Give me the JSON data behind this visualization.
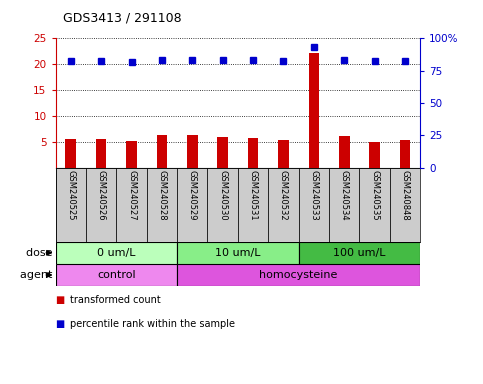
{
  "title": "GDS3413 / 291108",
  "samples": [
    "GSM240525",
    "GSM240526",
    "GSM240527",
    "GSM240528",
    "GSM240529",
    "GSM240530",
    "GSM240531",
    "GSM240532",
    "GSM240533",
    "GSM240534",
    "GSM240535",
    "GSM240848"
  ],
  "transformed_count": [
    5.6,
    5.5,
    5.1,
    6.3,
    6.3,
    5.9,
    5.8,
    5.4,
    22.1,
    6.2,
    5.05,
    5.3
  ],
  "percentile_rank_left": [
    20.7,
    20.7,
    20.5,
    20.9,
    20.9,
    20.8,
    20.8,
    20.7,
    23.3,
    20.9,
    20.6,
    20.7
  ],
  "ylim_left": [
    0,
    25
  ],
  "ylim_right": [
    0,
    100
  ],
  "yticks_left": [
    5,
    10,
    15,
    20,
    25
  ],
  "yticks_right": [
    0,
    25,
    50,
    75,
    100
  ],
  "ytick_labels_right": [
    "0",
    "25",
    "50",
    "75",
    "100%"
  ],
  "dot_color": "#0000cc",
  "bar_color": "#cc0000",
  "grid_color": "#000000",
  "dose_groups": [
    {
      "label": "0 um/L",
      "start": 0,
      "end": 4,
      "color": "#bbffbb"
    },
    {
      "label": "10 um/L",
      "start": 4,
      "end": 8,
      "color": "#88ee88"
    },
    {
      "label": "100 um/L",
      "start": 8,
      "end": 12,
      "color": "#44bb44"
    }
  ],
  "agent_groups": [
    {
      "label": "control",
      "start": 0,
      "end": 4,
      "color": "#ee88ee"
    },
    {
      "label": "homocysteine",
      "start": 4,
      "end": 12,
      "color": "#dd55dd"
    }
  ],
  "legend_items": [
    {
      "color": "#cc0000",
      "label": "transformed count"
    },
    {
      "color": "#0000cc",
      "label": "percentile rank within the sample"
    }
  ],
  "background_color": "#ffffff",
  "sample_box_color": "#cccccc",
  "bar_width": 0.35
}
